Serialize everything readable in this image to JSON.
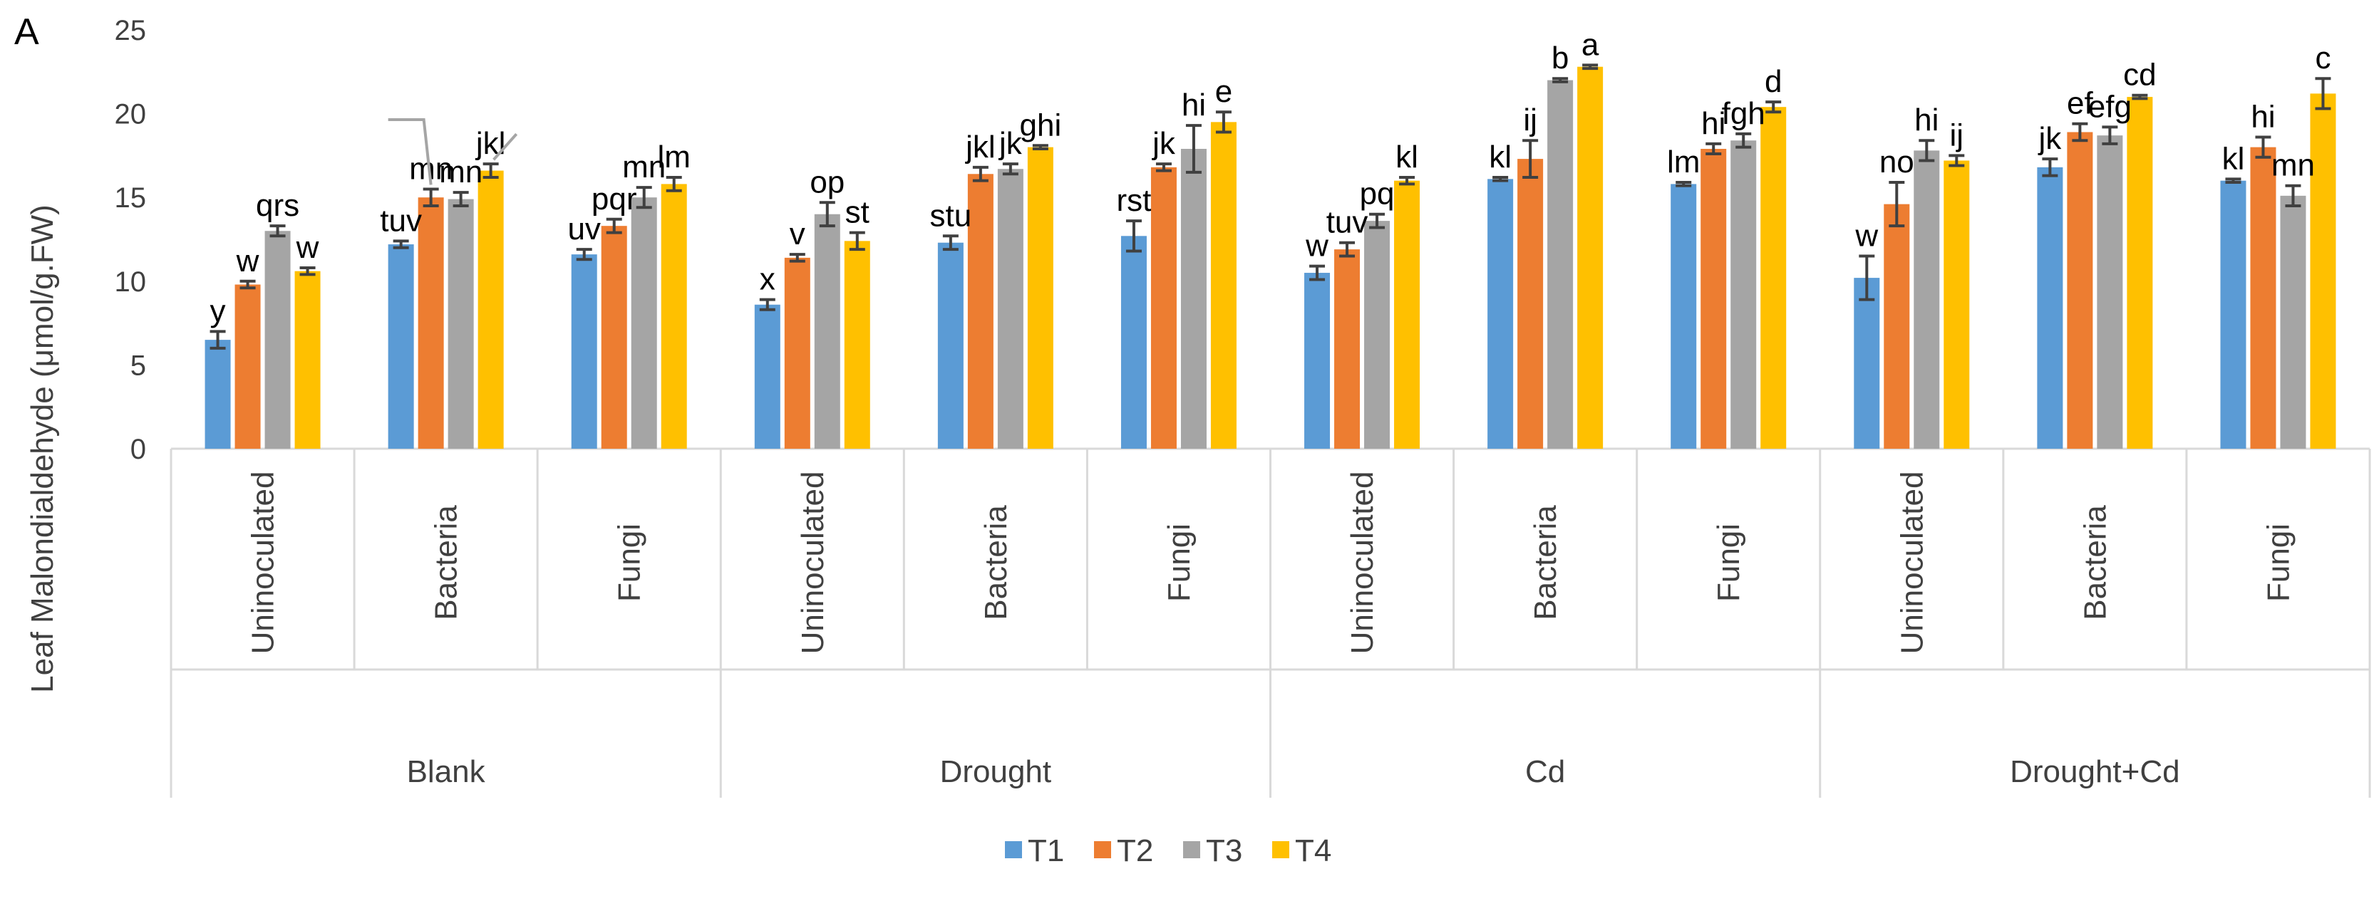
{
  "panel_label": "A",
  "colors": {
    "T1": "#5B9BD5",
    "T2": "#ED7D31",
    "T3": "#A5A5A5",
    "T4": "#FFC000",
    "axis": "#D9D9D9",
    "text": "#404040",
    "errorbar": "#404040"
  },
  "chart_data": {
    "type": "bar",
    "title": "",
    "ylabel": "Leaf Malondialdehyde (μmol/g.FW)",
    "xlabel": "",
    "ylim": [
      0,
      25
    ],
    "yticks": [
      "0",
      "5",
      "10",
      "15",
      "20",
      "25"
    ],
    "grid": false,
    "legend_position": "bottom",
    "series_names": [
      "T1",
      "T2",
      "T3",
      "T4"
    ],
    "groups": [
      {
        "name": "Blank",
        "subgroups": [
          {
            "name": "Uninoculated",
            "values": [
              6.5,
              9.8,
              13.0,
              10.6
            ],
            "errors": [
              0.5,
              0.2,
              0.3,
              0.2
            ],
            "letters": [
              "y",
              "w",
              "qrs",
              "w"
            ]
          },
          {
            "name": "Bacteria",
            "values": [
              12.2,
              15.0,
              14.9,
              16.6
            ],
            "errors": [
              0.2,
              0.5,
              0.4,
              0.4
            ],
            "letters": [
              "tuv",
              "mn",
              "mn",
              "jkl"
            ]
          },
          {
            "name": "Fungi",
            "values": [
              11.6,
              13.3,
              15.0,
              15.8
            ],
            "errors": [
              0.3,
              0.4,
              0.6,
              0.4
            ],
            "letters": [
              "uv",
              "pqr",
              "mn",
              "lm"
            ]
          }
        ]
      },
      {
        "name": "Drought",
        "subgroups": [
          {
            "name": "Uninoculated",
            "values": [
              8.6,
              11.4,
              14.0,
              12.4
            ],
            "errors": [
              0.3,
              0.2,
              0.7,
              0.5
            ],
            "letters": [
              "x",
              "v",
              "op",
              "st"
            ]
          },
          {
            "name": "Bacteria",
            "values": [
              12.3,
              16.4,
              16.7,
              18.0
            ],
            "errors": [
              0.4,
              0.4,
              0.3,
              0.1
            ],
            "letters": [
              "stu",
              "jkl",
              "jk",
              "ghi"
            ]
          },
          {
            "name": "Fungi",
            "values": [
              12.7,
              16.8,
              17.9,
              19.5
            ],
            "errors": [
              0.9,
              0.2,
              1.4,
              0.6
            ],
            "letters": [
              "rst",
              "jk",
              "hi",
              "e"
            ]
          }
        ]
      },
      {
        "name": "Cd",
        "subgroups": [
          {
            "name": "Uninoculated",
            "values": [
              10.5,
              11.9,
              13.6,
              16.0
            ],
            "errors": [
              0.4,
              0.4,
              0.4,
              0.2
            ],
            "letters": [
              "w",
              "tuv",
              "pq",
              "kl"
            ]
          },
          {
            "name": "Bacteria",
            "values": [
              16.1,
              17.3,
              22.0,
              22.8
            ],
            "errors": [
              0.1,
              1.1,
              0.1,
              0.1
            ],
            "letters": [
              "kl",
              "ij",
              "b",
              "a"
            ]
          },
          {
            "name": "Fungi",
            "values": [
              15.8,
              17.9,
              18.4,
              20.4
            ],
            "errors": [
              0.1,
              0.3,
              0.4,
              0.3
            ],
            "letters": [
              "lm",
              "hi",
              "fgh",
              "d"
            ]
          }
        ]
      },
      {
        "name": "Drought+Cd",
        "subgroups": [
          {
            "name": "Uninoculated",
            "values": [
              10.2,
              14.6,
              17.8,
              17.2
            ],
            "errors": [
              1.3,
              1.3,
              0.6,
              0.3
            ],
            "letters": [
              "w",
              "no",
              "hi",
              "ij"
            ]
          },
          {
            "name": "Bacteria",
            "values": [
              16.8,
              18.9,
              18.7,
              21.0
            ],
            "errors": [
              0.5,
              0.5,
              0.5,
              0.1
            ],
            "letters": [
              "jk",
              "ef",
              "efg",
              "cd"
            ]
          },
          {
            "name": "Fungi",
            "values": [
              16.0,
              18.0,
              15.1,
              21.2
            ],
            "errors": [
              0.1,
              0.6,
              0.6,
              0.9
            ],
            "letters": [
              "kl",
              "hi",
              "mn",
              "c"
            ]
          }
        ]
      }
    ]
  }
}
